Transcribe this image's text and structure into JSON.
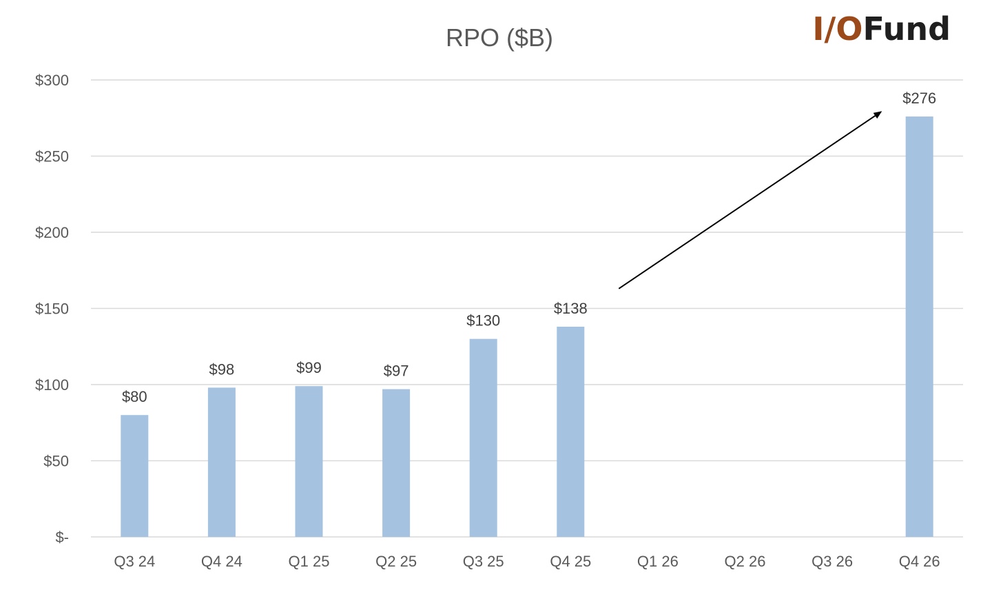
{
  "chart_data": {
    "type": "bar",
    "title": "RPO ($B)",
    "xlabel": "",
    "ylabel": "",
    "categories": [
      "Q3 24",
      "Q4 24",
      "Q1 25",
      "Q2 25",
      "Q3 25",
      "Q4 25",
      "Q1 26",
      "Q2 26",
      "Q3 26",
      "Q4 26"
    ],
    "values": [
      80,
      98,
      99,
      97,
      130,
      138,
      null,
      null,
      null,
      276
    ],
    "data_labels": [
      "$80",
      "$98",
      "$99",
      "$97",
      "$130",
      "$138",
      "",
      "",
      "",
      "$276"
    ],
    "ylim": [
      0,
      300
    ],
    "yticks": [
      0,
      50,
      100,
      150,
      200,
      250,
      300
    ],
    "ytick_labels": [
      "$-",
      "$50",
      "$100",
      "$150",
      "$200",
      "$250",
      "$300"
    ],
    "grid": true,
    "legend": "none",
    "bar_color": "#a5c2e1",
    "annotation": {
      "type": "arrow",
      "from": {
        "category": "Q4 25",
        "value": 163
      },
      "to": {
        "category": "Q4 26",
        "value": 279
      },
      "color": "#000000"
    }
  },
  "logo": {
    "part1": "I/O",
    "part2": "Fund",
    "color_part1": "#9c4a1a",
    "color_part2": "#1f1f1f"
  }
}
